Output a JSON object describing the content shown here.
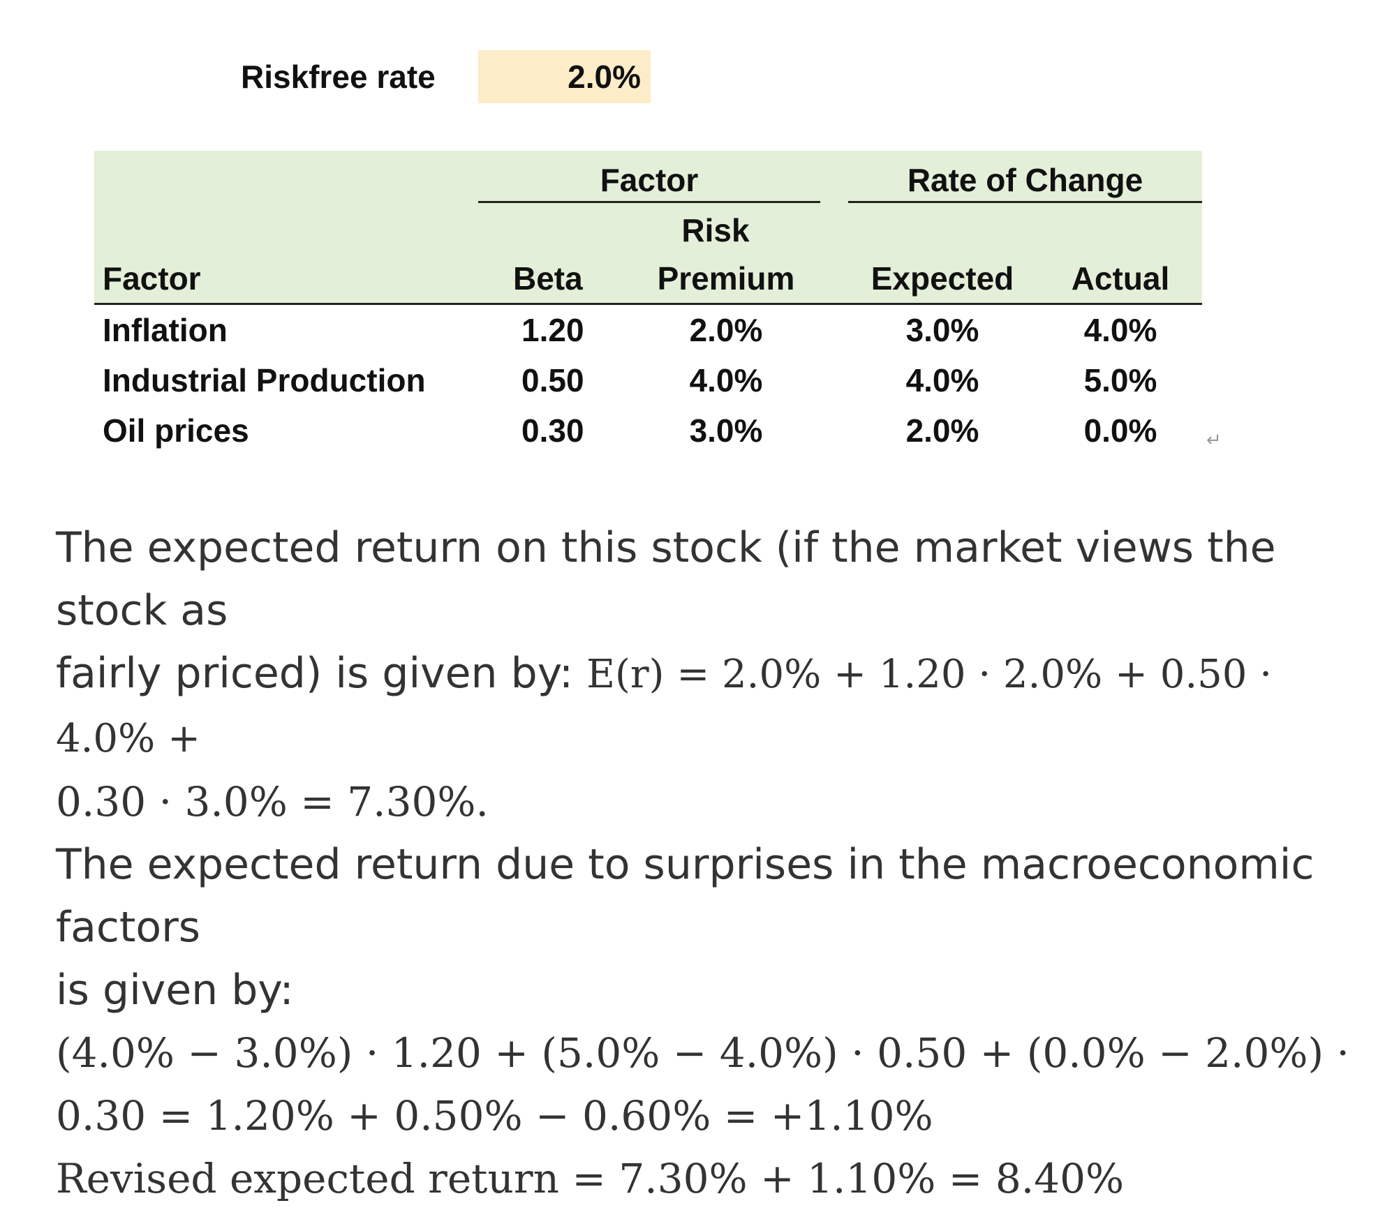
{
  "riskfree": {
    "label": "Riskfree rate",
    "value": "2.0%"
  },
  "table": {
    "group_factor": "Factor",
    "group_rate": "Rate of Change",
    "sub_risk": "Risk",
    "col_factor": "Factor",
    "col_beta": "Beta",
    "col_premium": "Premium",
    "col_expected": "Expected",
    "col_actual": "Actual",
    "rows": [
      {
        "factor": "Inflation",
        "beta": "1.20",
        "premium": "2.0%",
        "expected": "3.0%",
        "actual": "4.0%"
      },
      {
        "factor": "Industrial Production",
        "beta": "0.50",
        "premium": "4.0%",
        "expected": "4.0%",
        "actual": "5.0%"
      },
      {
        "factor": "Oil prices",
        "beta": "0.30",
        "premium": "3.0%",
        "expected": "2.0%",
        "actual": "0.0%"
      }
    ]
  },
  "return_mark": "↵",
  "text": {
    "p1_a": "The expected return on this stock (if the market views the stock as",
    "p1_b_text": "fairly priced) is given by: ",
    "p1_b_math": "E(r) = 2.0% + 1.20 · 2.0% + 0.50 · 4.0% +",
    "p1_c": "0.30 · 3.0% = 7.30%.",
    "p2_a": "The expected return due to surprises in the macroeconomic factors",
    "p2_b": "is given by:",
    "p3_a": "(4.0% − 3.0%) · 1.20 + (5.0% − 4.0%) · 0.50 + (0.0% − 2.0%) ·",
    "p3_b": "0.30 = 1.20% + 0.50% − 0.60% = +1.10%",
    "p4": "Revised expected return  = 7.30% + 1.10% = 8.40%"
  }
}
